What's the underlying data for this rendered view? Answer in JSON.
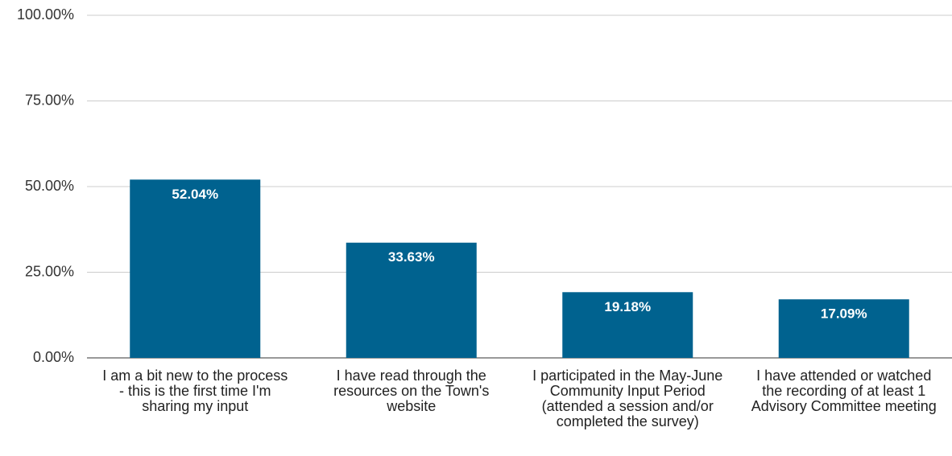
{
  "chart_data": {
    "type": "bar",
    "categories": [
      "I am a bit new to the process - this is the first time I'm sharing my input",
      "I have read through the resources on the Town's website",
      "I participated in the May-June Community Input Period (attended a session and/or completed the survey)",
      "I have attended or watched the recording of at least 1 Advisory Committee meeting"
    ],
    "values": [
      52.04,
      33.63,
      19.18,
      17.09
    ],
    "value_labels": [
      "52.04%",
      "33.63%",
      "19.18%",
      "17.09%"
    ],
    "color": "#00628f",
    "ylim": [
      0,
      100
    ],
    "yticks": [
      {
        "value": 0,
        "label": "0.00%"
      },
      {
        "value": 25,
        "label": "25.00%"
      },
      {
        "value": 50,
        "label": "50.00%"
      },
      {
        "value": 75,
        "label": "75.00%"
      },
      {
        "value": 100,
        "label": "100.00%"
      }
    ],
    "grid": true
  }
}
